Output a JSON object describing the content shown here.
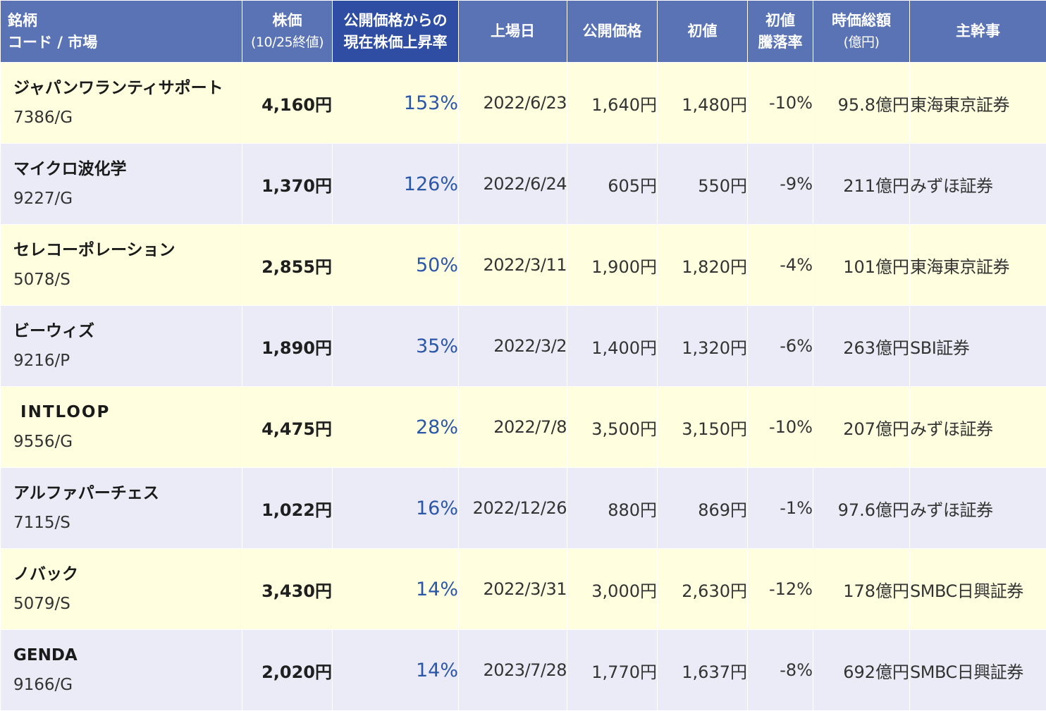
{
  "table": {
    "headers": {
      "name_line1": "銘柄",
      "name_line2": "コード / 市場",
      "price_line1": "株価",
      "price_line2": "(10/25終値)",
      "rise_line1": "公開価格からの",
      "rise_line2": "現在株価上昇率",
      "listing_date": "上場日",
      "offering_price": "公開価格",
      "initial_price": "初値",
      "initial_change_line1": "初値",
      "initial_change_line2": "騰落率",
      "market_cap_line1": "時価総額",
      "market_cap_line2": "(億円)",
      "underwriter": "主幹事"
    },
    "rows": [
      {
        "name": "ジャパンワランティサポート",
        "code": "7386/G",
        "price": "4,160円",
        "rise": "153%",
        "listing_date": "2022/6/23",
        "offering_price": "1,640円",
        "initial_price": "1,480円",
        "initial_change": "-10%",
        "market_cap": "95.8億円",
        "underwriter": "東海東京証券"
      },
      {
        "name": "マイクロ波化学",
        "code": "9227/G",
        "price": "1,370円",
        "rise": "126%",
        "listing_date": "2022/6/24",
        "offering_price": "605円",
        "initial_price": "550円",
        "initial_change": "-9%",
        "market_cap": "211億円",
        "underwriter": "みずほ証券"
      },
      {
        "name": "セレコーポレーション",
        "code": "5078/S",
        "price": "2,855円",
        "rise": "50%",
        "listing_date": "2022/3/11",
        "offering_price": "1,900円",
        "initial_price": "1,820円",
        "initial_change": "-4%",
        "market_cap": "101億円",
        "underwriter": "東海東京証券"
      },
      {
        "name": "ビーウィズ",
        "code": "9216/P",
        "price": "1,890円",
        "rise": "35%",
        "listing_date": "2022/3/2",
        "offering_price": "1,400円",
        "initial_price": "1,320円",
        "initial_change": "-6%",
        "market_cap": "263億円",
        "underwriter": "SBI証券"
      },
      {
        "name": " INTLOOP",
        "code": "9556/G",
        "price": "4,475円",
        "rise": "28%",
        "listing_date": "2022/7/8",
        "offering_price": "3,500円",
        "initial_price": "3,150円",
        "initial_change": "-10%",
        "market_cap": "207億円",
        "underwriter": "みずほ証券"
      },
      {
        "name": "アルファパーチェス",
        "code": "7115/S",
        "price": "1,022円",
        "rise": "16%",
        "listing_date": "2022/12/26",
        "offering_price": "880円",
        "initial_price": "869円",
        "initial_change": "-1%",
        "market_cap": "97.6億円",
        "underwriter": "みずほ証券"
      },
      {
        "name": "ノバック",
        "code": "5079/S",
        "price": "3,430円",
        "rise": "14%",
        "listing_date": "2022/3/31",
        "offering_price": "3,000円",
        "initial_price": "2,630円",
        "initial_change": "-12%",
        "market_cap": "178億円",
        "underwriter": "SMBC日興証券"
      },
      {
        "name": "GENDA",
        "code": "9166/G",
        "price": "2,020円",
        "rise": "14%",
        "listing_date": "2023/7/28",
        "offering_price": "1,770円",
        "initial_price": "1,637円",
        "initial_change": "-8%",
        "market_cap": "692億円",
        "underwriter": "SMBC日興証券"
      }
    ]
  }
}
